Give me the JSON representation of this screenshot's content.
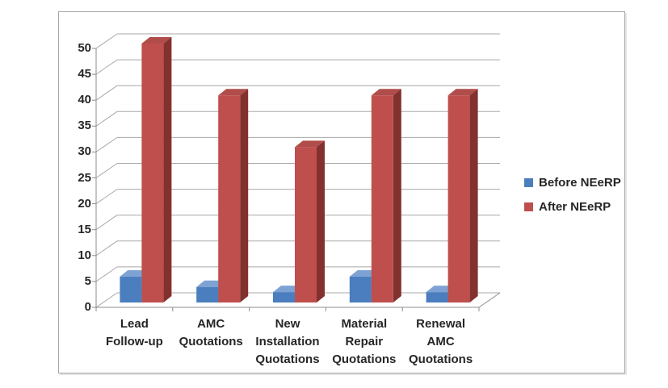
{
  "chart_data": {
    "type": "bar",
    "variant": "3d-clustered-column",
    "title": "",
    "xlabel": "",
    "ylabel": "",
    "categories": [
      [
        "Lead",
        "Follow-up"
      ],
      [
        "AMC",
        "Quotations"
      ],
      [
        "New",
        "Installation",
        "Quotations"
      ],
      [
        "Material",
        "Repair",
        "Quotations"
      ],
      [
        "Renewal",
        "AMC",
        "Quotations"
      ]
    ],
    "series": [
      {
        "name": "Before NEeRP",
        "values": [
          5,
          3,
          2,
          5,
          2
        ],
        "color_front": "#4A7EBE",
        "color_top": "#7EA2D3",
        "color_side": "#365D94"
      },
      {
        "name": "After NEeRP",
        "values": [
          50,
          40,
          30,
          40,
          40
        ],
        "color_front": "#BE4F4C",
        "color_top": "#B04D4A",
        "color_side": "#82312F"
      }
    ],
    "ylim": [
      0,
      50
    ],
    "yticks": [
      0,
      5,
      10,
      15,
      20,
      25,
      30,
      35,
      40,
      45,
      50
    ],
    "grid": true,
    "legend_position": "right"
  },
  "colors": {
    "gridline": "#A8A8A8",
    "axis": "#8C8C8C",
    "text": "#262626",
    "frame_border": "#A6A6A6",
    "background": "#FFFFFF"
  }
}
